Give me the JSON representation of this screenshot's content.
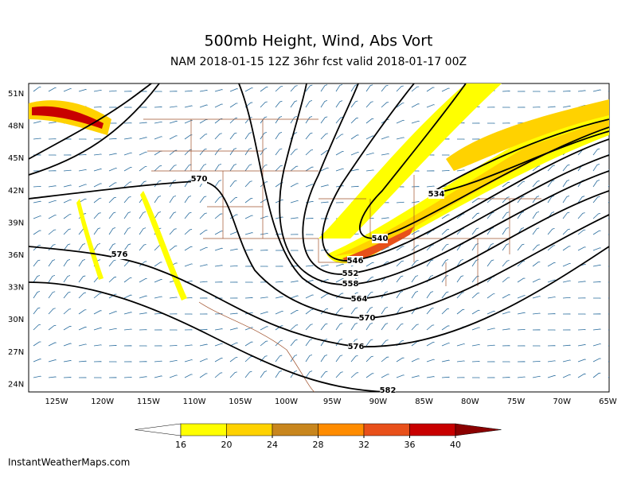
{
  "title": "500mb Height, Wind, Abs Vort",
  "subtitle": "NAM 2018-01-15 12Z 36hr fcst valid 2018-01-17 00Z",
  "map": {
    "lat_labels": [
      "51N",
      "48N",
      "45N",
      "42N",
      "39N",
      "36N",
      "33N",
      "30N",
      "27N",
      "24N"
    ],
    "lon_labels": [
      "125W",
      "120W",
      "115W",
      "110W",
      "105W",
      "100W",
      "95W",
      "90W",
      "85W",
      "80W",
      "75W",
      "70W",
      "65W"
    ],
    "contour_labels": [
      "570",
      "576",
      "534",
      "540",
      "546",
      "552",
      "558",
      "564",
      "570",
      "576",
      "582"
    ]
  },
  "colorbar": {
    "ticks": [
      16,
      20,
      24,
      28,
      32,
      36,
      40
    ],
    "colors": [
      "#ffffff",
      "#ffff00",
      "#ffd200",
      "#c8861e",
      "#ff8c00",
      "#e8501a",
      "#c80000",
      "#8b0000"
    ]
  },
  "footer": "InstantWeatherMaps.com"
}
